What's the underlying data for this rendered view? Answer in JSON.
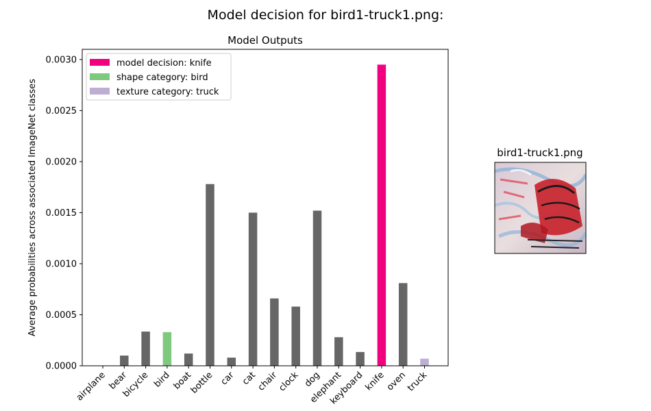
{
  "figure": {
    "suptitle": "Model decision for bird1-truck1.png:"
  },
  "chart_data": {
    "type": "bar",
    "title": "Model Outputs",
    "xlabel": "",
    "ylabel": "Average probabilities across associated ImageNet classes",
    "ylim": [
      0,
      0.0031
    ],
    "yticks": [
      "0.0000",
      "0.0005",
      "0.0010",
      "0.0015",
      "0.0020",
      "0.0025",
      "0.0030"
    ],
    "ytick_values": [
      0,
      0.0005,
      0.001,
      0.0015,
      0.002,
      0.0025,
      0.003
    ],
    "categories": [
      "airplane",
      "bear",
      "bicycle",
      "bird",
      "boat",
      "bottle",
      "car",
      "cat",
      "chair",
      "clock",
      "dog",
      "elephant",
      "keyboard",
      "knife",
      "oven",
      "truck"
    ],
    "values": [
      2e-06,
      0.0001,
      0.000335,
      0.00033,
      0.00012,
      0.00178,
      8e-05,
      0.0015,
      0.00066,
      0.00058,
      0.00152,
      0.00028,
      0.000135,
      0.00295,
      0.00081,
      7e-05
    ],
    "colors": {
      "default": "#666666",
      "decision": "#f0027f",
      "shape": "#7fc97f",
      "texture": "#beaed4"
    },
    "highlight": {
      "decision": "knife",
      "shape": "bird",
      "texture": "truck"
    },
    "legend": {
      "placement": "upper-left",
      "entries": [
        {
          "label": "model decision: knife",
          "color_key": "decision"
        },
        {
          "label": "shape category: bird",
          "color_key": "shape"
        },
        {
          "label": "texture category: truck",
          "color_key": "texture"
        }
      ]
    },
    "grid": false
  },
  "thumbnail": {
    "title": "bird1-truck1.png"
  }
}
